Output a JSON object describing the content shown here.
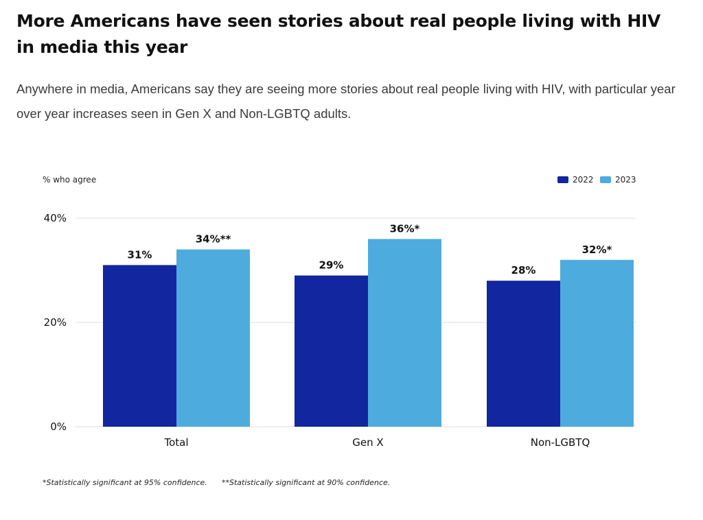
{
  "header": {
    "title": "More Americans have seen stories about real people living with HIV in media this year",
    "subtitle": "Anywhere in media, Americans say they are seeing more stories about real people living with HIV, with particular year over year increases seen in Gen X and Non-LGBTQ adults."
  },
  "chart_data": {
    "type": "bar",
    "ylabel": "% who agree",
    "xlabel": "",
    "ylim": [
      0,
      40
    ],
    "yticks": [
      0,
      20,
      40
    ],
    "ytick_labels": [
      "0%",
      "20%",
      "40%"
    ],
    "grid": true,
    "legend_position": "top-right",
    "categories": [
      "Total",
      "Gen X",
      "Non-LGBTQ"
    ],
    "series": [
      {
        "name": "2022",
        "color": "#1226a0",
        "values": [
          31,
          29,
          28
        ],
        "labels": [
          "31%",
          "29%",
          "28%"
        ]
      },
      {
        "name": "2023",
        "color": "#4dacdd",
        "values": [
          34,
          36,
          32
        ],
        "labels": [
          "34%**",
          "36%*",
          "32%*"
        ]
      }
    ],
    "footnotes": [
      "*Statistically significant at 95% confidence.",
      "**Statistically significant at 90% confidence."
    ]
  }
}
